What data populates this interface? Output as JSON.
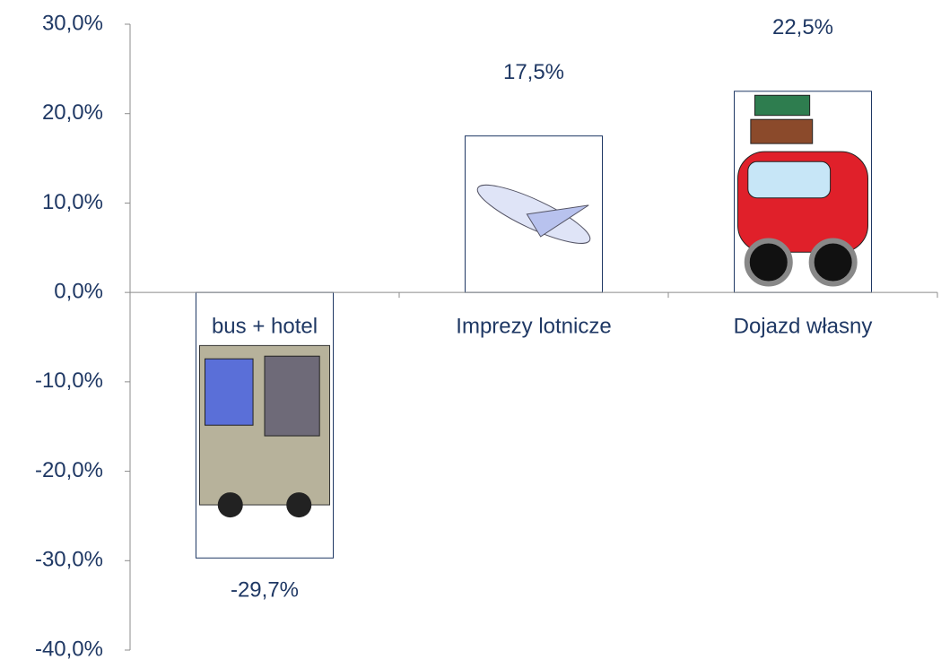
{
  "chart_data": {
    "type": "bar",
    "categories": [
      "bus + hotel",
      "Imprezy lotnicze",
      "Dojazd własny"
    ],
    "values": [
      -29.7,
      17.5,
      22.5
    ],
    "value_labels": [
      "-29,7%",
      "17,5%",
      "22,5%"
    ],
    "color": "#ffffff",
    "ylim": [
      -40,
      30
    ],
    "yticks": [
      {
        "value": -40,
        "label": "-40,0%"
      },
      {
        "value": -30,
        "label": "-30,0%"
      },
      {
        "value": -20,
        "label": "-20,0%"
      },
      {
        "value": -10,
        "label": "-10,0%"
      },
      {
        "value": 0,
        "label": "0,0%"
      },
      {
        "value": 10,
        "label": "10,0%"
      },
      {
        "value": 20,
        "label": "20,0%"
      },
      {
        "value": 30,
        "label": "30,0%"
      }
    ],
    "grid": false
  }
}
